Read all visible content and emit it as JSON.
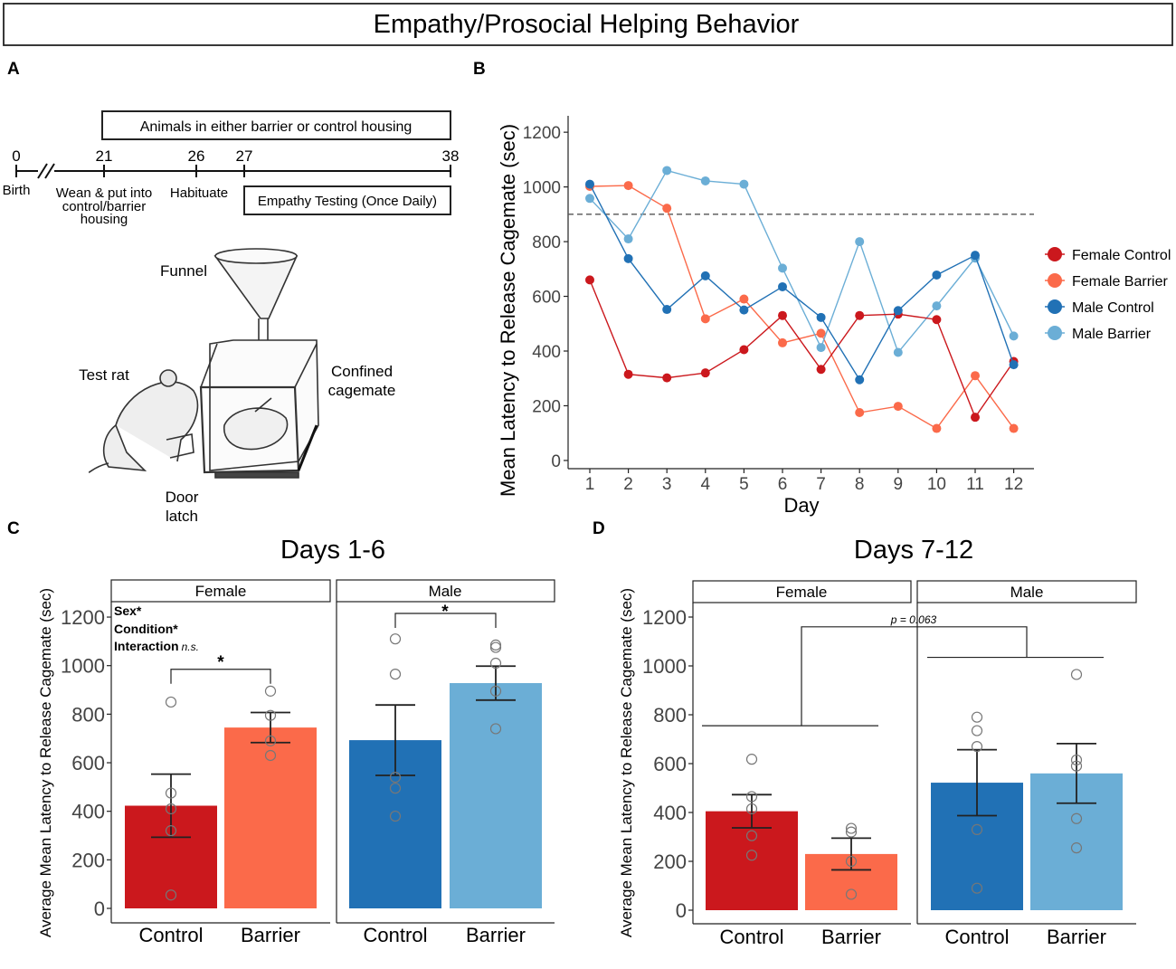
{
  "banner_title": "Empathy/Prosocial Helping Behavior",
  "colors": {
    "female_control": "#cb181d",
    "female_barrier": "#fb6a4a",
    "male_control": "#2171b5",
    "male_barrier": "#6baed6"
  },
  "panel_a": {
    "label": "A",
    "housing_box": "Animals in either barrier or control housing",
    "ticks": [
      {
        "value": "0",
        "caption": "Birth"
      },
      {
        "value": "21",
        "caption": "Wean & put into control/barrier housing"
      },
      {
        "value": "26",
        "caption": "Habituate"
      },
      {
        "value": "27",
        "caption": ""
      },
      {
        "value": "38",
        "caption": ""
      }
    ],
    "wean_lines": [
      "Wean & put into",
      "control/barrier",
      "housing"
    ],
    "testing_box": "Empathy Testing (Once Daily)",
    "illustration": {
      "funnel": "Funnel",
      "test_rat": "Test rat",
      "confined_lines": [
        "Confined",
        "cagemate"
      ],
      "door_lines": [
        "Door",
        "latch"
      ]
    }
  },
  "chart_data": [
    {
      "panel": "B",
      "type": "line",
      "title": "",
      "xlabel": "Day",
      "ylabel": "Mean Latency to Release Cagemate (sec)",
      "x": [
        1,
        2,
        3,
        4,
        5,
        6,
        7,
        8,
        9,
        10,
        11,
        12
      ],
      "ylim": [
        -30,
        1260
      ],
      "yticks": [
        0,
        200,
        400,
        600,
        800,
        1000,
        1200
      ],
      "reference_line": 900,
      "legend_position": "right",
      "series": [
        {
          "name": "Female Control",
          "color_key": "female_control",
          "values": [
            660,
            315,
            302,
            320,
            405,
            530,
            333,
            530,
            535,
            515,
            158,
            362
          ]
        },
        {
          "name": "Female Barrier",
          "color_key": "female_barrier",
          "values": [
            1002,
            1005,
            922,
            518,
            590,
            430,
            465,
            175,
            198,
            117,
            310,
            117
          ]
        },
        {
          "name": "Male Control",
          "color_key": "male_control",
          "values": [
            1010,
            738,
            552,
            675,
            550,
            635,
            523,
            295,
            548,
            678,
            750,
            350
          ]
        },
        {
          "name": "Male Barrier",
          "color_key": "male_barrier",
          "values": [
            958,
            810,
            1060,
            1022,
            1010,
            703,
            413,
            800,
            395,
            565,
            740,
            455
          ]
        }
      ]
    },
    {
      "panel": "C",
      "type": "bar",
      "title": "Days 1-6",
      "ylabel": "Average Mean Latency to Release Cagemate (sec)",
      "ylim": [
        -40,
        1330
      ],
      "yticks": [
        0,
        200,
        400,
        600,
        800,
        1000,
        1200
      ],
      "facets": [
        "Female",
        "Male"
      ],
      "categories": [
        "Control",
        "Barrier"
      ],
      "bars": [
        {
          "facet": "Female",
          "category": "Control",
          "color_key": "female_control",
          "value": 423,
          "se": 130,
          "points": [
            850,
            475,
            410,
            320,
            55
          ]
        },
        {
          "facet": "Female",
          "category": "Barrier",
          "color_key": "female_barrier",
          "value": 745,
          "se": 62,
          "points": [
            895,
            795,
            690,
            630
          ]
        },
        {
          "facet": "Male",
          "category": "Control",
          "color_key": "male_control",
          "value": 693,
          "se": 145,
          "points": [
            1110,
            965,
            540,
            495,
            380
          ]
        },
        {
          "facet": "Male",
          "category": "Barrier",
          "color_key": "male_barrier",
          "value": 928,
          "se": 70,
          "points": [
            1085,
            1075,
            1010,
            895,
            740
          ]
        }
      ],
      "stats": {
        "sex": "Sex*",
        "condition": "Condition*",
        "interaction": "Interaction",
        "interaction_note": "n.s."
      },
      "brackets": [
        {
          "facet": "Female",
          "label": "*",
          "y_level": 985
        },
        {
          "facet": "Male",
          "label": "*",
          "y_level": 1215
        }
      ]
    },
    {
      "panel": "D",
      "type": "bar",
      "title": "Days 7-12",
      "ylabel": "Average Mean Latency to Release Cagemate (sec)",
      "ylim": [
        -40,
        1330
      ],
      "yticks": [
        0,
        200,
        400,
        600,
        800,
        1000,
        1200
      ],
      "facets": [
        "Female",
        "Male"
      ],
      "categories": [
        "Control",
        "Barrier"
      ],
      "bars": [
        {
          "facet": "Female",
          "category": "Control",
          "color_key": "female_control",
          "value": 405,
          "se": 68,
          "points": [
            618,
            465,
            415,
            305,
            225
          ]
        },
        {
          "facet": "Female",
          "category": "Barrier",
          "color_key": "female_barrier",
          "value": 230,
          "se": 65,
          "points": [
            335,
            320,
            200,
            65
          ]
        },
        {
          "facet": "Male",
          "category": "Control",
          "color_key": "male_control",
          "value": 522,
          "se": 135,
          "points": [
            790,
            735,
            670,
            330,
            90
          ]
        },
        {
          "facet": "Male",
          "category": "Barrier",
          "color_key": "male_barrier",
          "value": 560,
          "se": 122,
          "points": [
            965,
            615,
            590,
            375,
            255
          ]
        }
      ],
      "group_comparison": {
        "label": "p = 0.063",
        "female_y": 755,
        "male_y": 1035,
        "top_y": 1160
      }
    }
  ]
}
